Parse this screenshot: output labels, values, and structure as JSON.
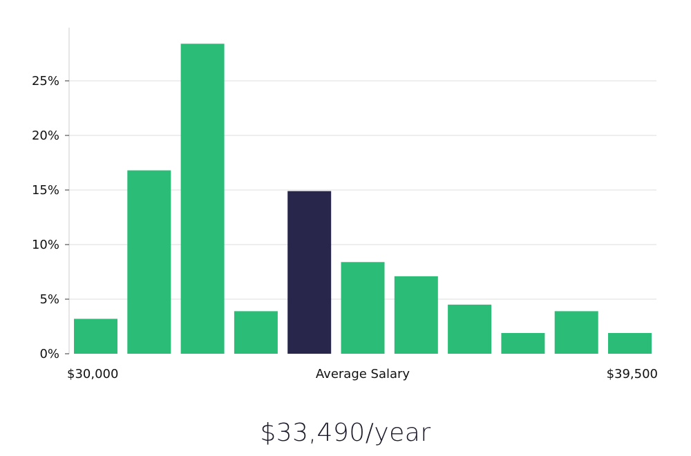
{
  "chart_data": {
    "type": "bar",
    "title": "",
    "xlabel": "Average Salary",
    "ylabel": "",
    "x_start_label": "$30,000",
    "x_end_label": "$39,500",
    "y_ticks": [
      "0%",
      "5%",
      "10%",
      "15%",
      "20%",
      "25%"
    ],
    "ylim": [
      0,
      30
    ],
    "grid": true,
    "values": [
      3.2,
      16.8,
      28.4,
      3.9,
      14.9,
      8.4,
      7.1,
      4.5,
      1.9,
      3.9,
      1.9
    ],
    "highlight_index": 4,
    "colors": {
      "bar": "#2bbd77",
      "highlight": "#28264a",
      "grid": "#dddddd",
      "axis": "#cccccc"
    }
  },
  "summary": {
    "salary": "$33,490/year"
  }
}
